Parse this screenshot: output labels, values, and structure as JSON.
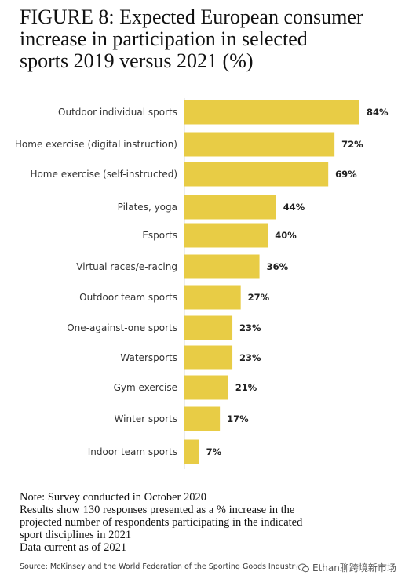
{
  "header": {
    "title": "FIGURE 8: Expected European consumer\nincrease in participation in selected\nsports 2019 versus 2021 (%)"
  },
  "chart_data": {
    "type": "bar",
    "orientation": "horizontal",
    "categories": [
      "Outdoor individual sports",
      "Home exercise (digital instruction)",
      "Home exercise (self-instructed)",
      "Pilates, yoga",
      "Esports",
      "Virtual races/e-racing",
      "Outdoor team sports",
      "One-against-one sports",
      "Watersports",
      "Gym exercise",
      "Winter sports",
      "Indoor team sports"
    ],
    "values": [
      84,
      72,
      69,
      44,
      40,
      36,
      27,
      23,
      23,
      21,
      17,
      7
    ],
    "value_labels": [
      "84%",
      "72%",
      "69%",
      "44%",
      "40%",
      "36%",
      "27%",
      "23%",
      "23%",
      "21%",
      "17%",
      "7%"
    ],
    "xlim": [
      0,
      84
    ],
    "bar_color": "#e8cc45",
    "axis_color": "#d8d8d8",
    "grid": false
  },
  "notes": [
    "Note: Survey conducted in October 2020",
    "Results show 130 responses presented as a % increase in the",
    "projected number of respondents participating in the indicated",
    "sport disciplines in 2021",
    "Data current as of 2021"
  ],
  "source": "Source: McKinsey and the World Federation of the Sporting Goods Industry",
  "watermark": {
    "text": "Ethan聊跨境新市场",
    "icon": "wechat-icon"
  }
}
